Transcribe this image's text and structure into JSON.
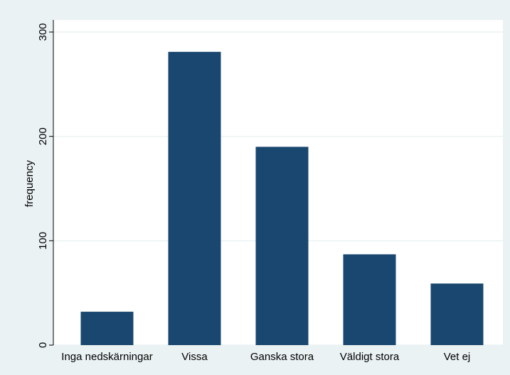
{
  "chart_data": {
    "type": "bar",
    "categories": [
      "Inga nedskärningar",
      "Vissa",
      "Ganska stora",
      "Väldigt stora",
      "Vet ej"
    ],
    "values": [
      32,
      281,
      190,
      87,
      59
    ],
    "color": "#1a476f",
    "y_label": "frequency",
    "ylim": [
      0,
      300
    ],
    "yticks": [
      0,
      100,
      200,
      300
    ],
    "grid": true
  }
}
